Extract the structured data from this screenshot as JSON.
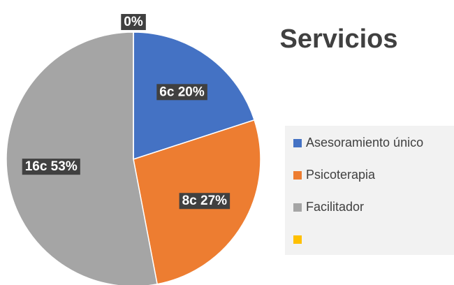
{
  "chart_data": {
    "type": "pie",
    "title": "Servicios",
    "categories": [
      "Asesoramiento único",
      "Psicoterapia",
      "Facilitador",
      null
    ],
    "values": [
      20,
      27,
      53,
      0
    ],
    "value_labels": [
      "6c 20%",
      "8c 27%",
      "16c 53%",
      "0%"
    ],
    "colors": [
      "#4472c4",
      "#ed7d31",
      "#a5a5a5",
      "#ffc000"
    ],
    "legend": "right"
  }
}
